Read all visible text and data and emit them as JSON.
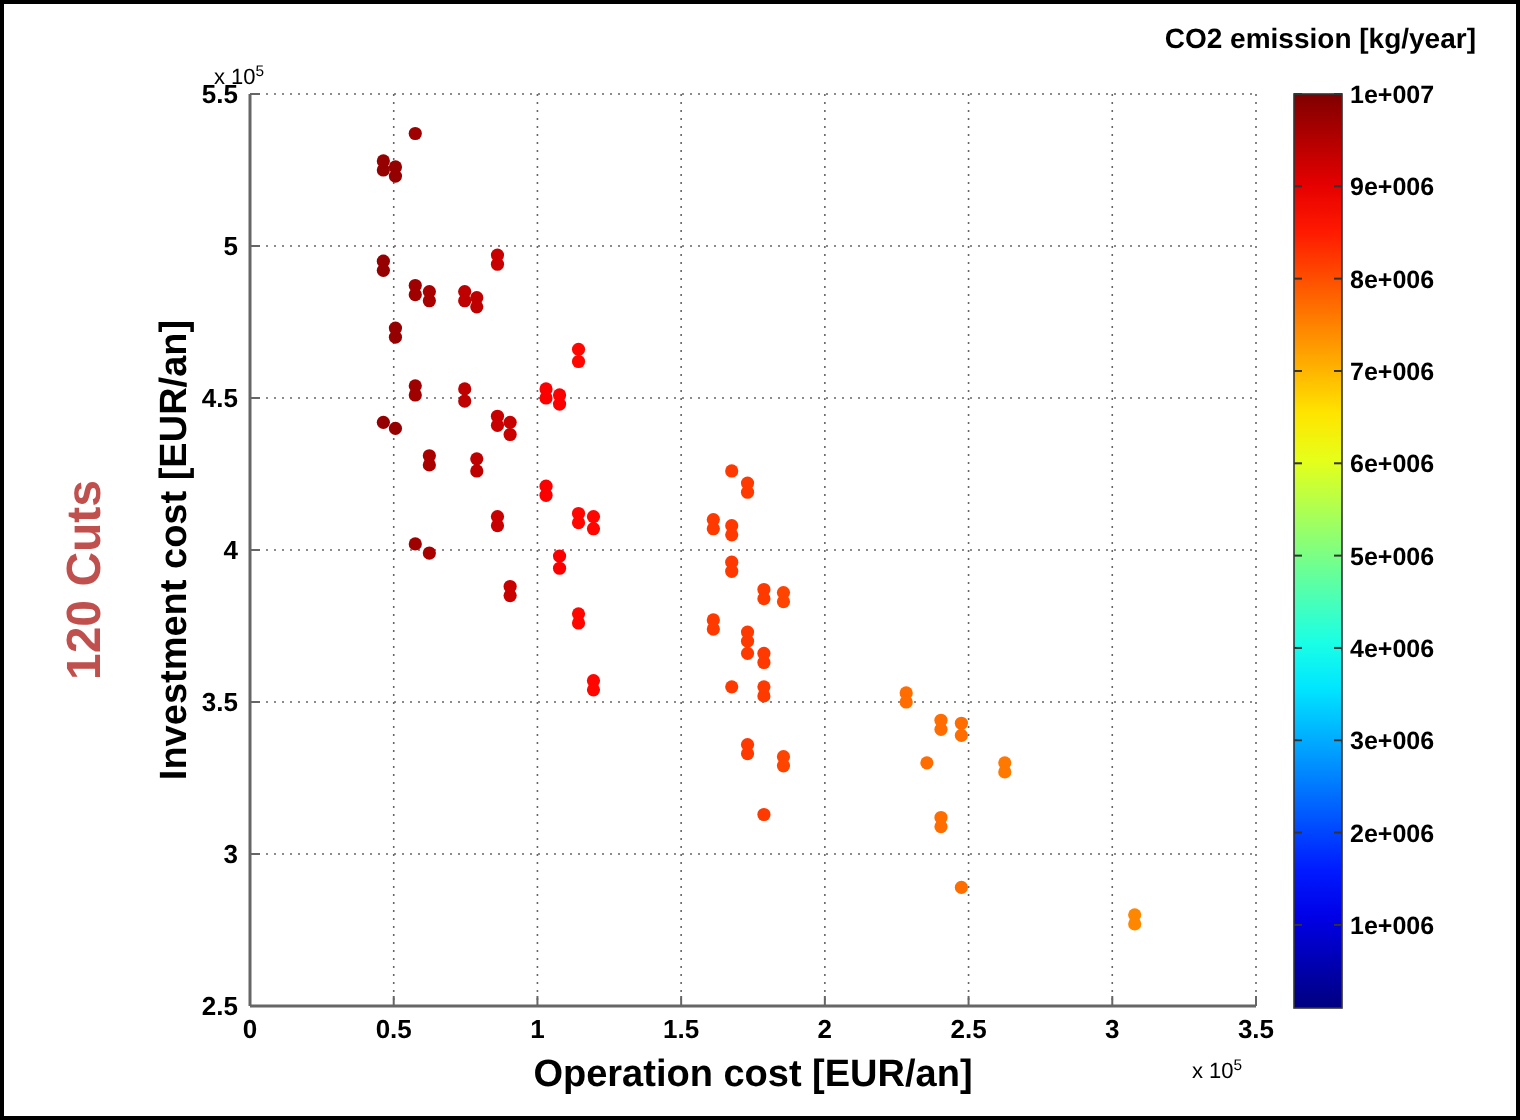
{
  "chart_data": {
    "type": "scatter",
    "xlabel": "Operation cost [EUR/an]",
    "ylabel": "Investment cost [EUR/an]",
    "clabel": "CO2 emission [kg/year]",
    "annotations": [
      "120 Cuts",
      "x 10$^{5}$",
      "x 10$^{5}$"
    ],
    "xlim": [
      0,
      3.5
    ],
    "xticks": [
      0,
      0.5,
      1,
      1.5,
      2,
      2.5,
      3,
      3.5
    ],
    "ylim": [
      2.5,
      5.5
    ],
    "yticks": [
      2.5,
      3,
      3.5,
      4,
      4.5,
      5,
      5.5
    ],
    "clim": [
      100000,
      10000000
    ],
    "cticks": [
      {
        "value": 1000000,
        "label": "1e+006"
      },
      {
        "value": 2000000,
        "label": "2e+006"
      },
      {
        "value": 3000000,
        "label": "3e+006"
      },
      {
        "value": 4000000,
        "label": "4e+006"
      },
      {
        "value": 5000000,
        "label": "5e+006"
      },
      {
        "value": 6000000,
        "label": "6e+006"
      },
      {
        "value": 7000000,
        "label": "7e+006"
      },
      {
        "value": 8000000,
        "label": "8e+006"
      },
      {
        "value": 9000000,
        "label": "9e+006"
      },
      {
        "value": 10000000,
        "label": "1e+007"
      }
    ],
    "grid": true,
    "marker": "circle",
    "series": [
      {
        "x": [
          0.464,
          0.464,
          0.464,
          0.464,
          0.464,
          0.506,
          0.506,
          0.506,
          0.506,
          0.506,
          0.575,
          0.575,
          0.575,
          0.575,
          0.575,
          0.575,
          0.624,
          0.624,
          0.624,
          0.624,
          0.624,
          0.747,
          0.747,
          0.747,
          0.747,
          0.789,
          0.789,
          0.789,
          0.789,
          0.861,
          0.861,
          0.861,
          0.861,
          0.861,
          0.861,
          0.905,
          0.905,
          0.905,
          0.905,
          1.03,
          1.03,
          1.03,
          1.03,
          1.077,
          1.077,
          1.077,
          1.077,
          1.143,
          1.143,
          1.143,
          1.143,
          1.143,
          1.143,
          1.195,
          1.195,
          1.195,
          1.195,
          1.612,
          1.612,
          1.612,
          1.612,
          1.676,
          1.676,
          1.676,
          1.676,
          1.676,
          1.676,
          1.731,
          1.731,
          1.731,
          1.731,
          1.731,
          1.731,
          1.731,
          1.788,
          1.788,
          1.788,
          1.788,
          1.788,
          1.788,
          1.788,
          1.856,
          1.856,
          1.856,
          1.856,
          2.283,
          2.283,
          2.355,
          2.404,
          2.404,
          2.404,
          2.404,
          2.475,
          2.475,
          2.475,
          2.626,
          2.626,
          3.078,
          3.078
        ],
        "values": [
          5.28,
          5.25,
          4.95,
          4.92,
          4.42,
          5.26,
          5.23,
          4.73,
          4.7,
          4.4,
          5.37,
          4.87,
          4.84,
          4.54,
          4.51,
          4.02,
          4.85,
          4.82,
          4.31,
          4.28,
          3.99,
          4.85,
          4.82,
          4.53,
          4.49,
          4.83,
          4.8,
          4.3,
          4.26,
          4.97,
          4.94,
          4.44,
          4.41,
          4.11,
          4.08,
          4.42,
          4.38,
          3.88,
          3.85,
          4.53,
          4.5,
          4.21,
          4.18,
          4.51,
          4.48,
          3.98,
          3.94,
          4.66,
          4.62,
          4.12,
          4.09,
          3.79,
          3.76,
          4.11,
          4.07,
          3.57,
          3.54,
          4.1,
          4.07,
          3.77,
          3.74,
          4.26,
          4.08,
          4.05,
          3.96,
          3.93,
          3.55,
          4.22,
          4.19,
          3.73,
          3.7,
          3.66,
          3.36,
          3.33,
          3.87,
          3.84,
          3.66,
          3.63,
          3.55,
          3.52,
          3.13,
          3.86,
          3.83,
          3.32,
          3.29,
          3.53,
          3.5,
          3.3,
          3.44,
          3.41,
          3.12,
          3.09,
          3.43,
          3.39,
          2.89,
          3.3,
          3.27,
          2.8,
          2.77
        ],
        "cvalues": [
          9800000,
          9800000,
          9800000,
          9800000,
          9800000,
          9800000,
          9800000,
          9800000,
          9800000,
          9800000,
          9700000,
          9700000,
          9700000,
          9700000,
          9700000,
          9700000,
          9600000,
          9600000,
          9600000,
          9600000,
          9600000,
          9400000,
          9400000,
          9400000,
          9400000,
          9400000,
          9400000,
          9400000,
          9400000,
          9300000,
          9300000,
          9300000,
          9300000,
          9300000,
          9300000,
          9300000,
          9300000,
          9300000,
          9300000,
          8800000,
          8800000,
          8800000,
          8800000,
          8800000,
          8800000,
          8800000,
          8800000,
          8700000,
          8700000,
          8700000,
          8700000,
          8700000,
          8700000,
          8700000,
          8700000,
          8700000,
          8700000,
          8200000,
          8200000,
          8200000,
          8200000,
          8200000,
          8200000,
          8200000,
          8200000,
          8200000,
          8200000,
          8200000,
          8200000,
          8200000,
          8200000,
          8200000,
          8200000,
          8200000,
          8200000,
          8200000,
          8200000,
          8200000,
          8200000,
          8200000,
          8200000,
          8100000,
          8100000,
          8100000,
          8100000,
          7700000,
          7700000,
          7700000,
          7700000,
          7700000,
          7700000,
          7700000,
          7700000,
          7700000,
          7700000,
          7600000,
          7600000,
          7450000,
          7450000
        ]
      }
    ]
  }
}
